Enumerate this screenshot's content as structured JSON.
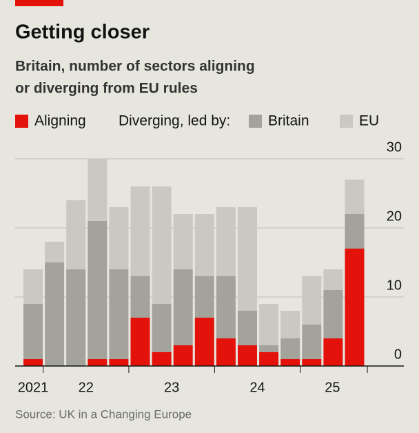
{
  "chart_data": {
    "type": "stacked_bar",
    "title": "Getting closer",
    "subtitle": [
      "Britain, number of sectors aligning",
      "or diverging from EU rules"
    ],
    "legend_group_label": "Diverging, led by:",
    "categories": [
      "2021",
      "22",
      null,
      null,
      null,
      "23",
      null,
      null,
      null,
      "24",
      null,
      null,
      null,
      "25",
      null,
      null
    ],
    "series": [
      {
        "name": "Aligning",
        "color": "#e3120b",
        "values": [
          1,
          0,
          0,
          1,
          1,
          7,
          2,
          3,
          7,
          4,
          3,
          2,
          1,
          1,
          4,
          17
        ]
      },
      {
        "name": "Britain",
        "color": "#a3a39b",
        "values": [
          8,
          15,
          14,
          20,
          13,
          6,
          7,
          11,
          6,
          9,
          5,
          1,
          3,
          5,
          7,
          5
        ]
      },
      {
        "name": "EU",
        "color": "#c9c9c1",
        "values": [
          5,
          3,
          10,
          9,
          9,
          13,
          17,
          8,
          9,
          10,
          15,
          6,
          4,
          7,
          3,
          5
        ]
      }
    ],
    "ylim": [
      0,
      30
    ],
    "yticks": [
      0,
      10,
      20,
      30
    ],
    "grid": true,
    "source": "Source: UK in a Changing Europe"
  }
}
